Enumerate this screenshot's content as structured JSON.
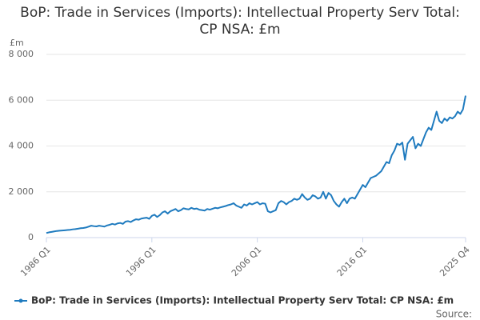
{
  "chart_data": {
    "type": "line",
    "title": "BoP: Trade in Services (Imports): Intellectual Property Serv Total: CP NSA: £m",
    "y_label": "£m",
    "source": "Source:",
    "categories": [
      "1986 Q1",
      null,
      null,
      null,
      null,
      null,
      null,
      null,
      null,
      null,
      null,
      null,
      null,
      null,
      null,
      null,
      null,
      null,
      null,
      null,
      null,
      null,
      null,
      null,
      null,
      null,
      null,
      null,
      null,
      null,
      null,
      null,
      null,
      null,
      null,
      null,
      null,
      null,
      null,
      null,
      "1996 Q1",
      null,
      null,
      null,
      null,
      null,
      null,
      null,
      null,
      null,
      null,
      null,
      null,
      null,
      null,
      null,
      null,
      null,
      null,
      null,
      null,
      null,
      null,
      null,
      null,
      null,
      null,
      null,
      null,
      null,
      null,
      null,
      null,
      null,
      null,
      null,
      null,
      null,
      null,
      null,
      "2006 Q1",
      null,
      null,
      null,
      null,
      null,
      null,
      null,
      null,
      null,
      null,
      null,
      null,
      null,
      null,
      null,
      null,
      null,
      null,
      null,
      null,
      null,
      null,
      null,
      null,
      null,
      null,
      null,
      null,
      null,
      null,
      null,
      null,
      null,
      null,
      null,
      null,
      null,
      null,
      null,
      "2016 Q1",
      null,
      null,
      null,
      null,
      null,
      null,
      null,
      null,
      null,
      null,
      null,
      null,
      null,
      null,
      null,
      null,
      null,
      null,
      null,
      null,
      null,
      null,
      null,
      null,
      null,
      null,
      null,
      null,
      null,
      null,
      null,
      null,
      null,
      null,
      null,
      null,
      null,
      null,
      "2025 Q4"
    ],
    "series": [
      {
        "name": "BoP: Trade in Services (Imports): Intellectual Property Serv Total: CP NSA: £m",
        "color": "#1f7bbf",
        "values": [
          200,
          230,
          250,
          270,
          290,
          300,
          310,
          320,
          330,
          340,
          360,
          370,
          390,
          410,
          420,
          440,
          480,
          520,
          500,
          490,
          520,
          500,
          480,
          530,
          560,
          600,
          570,
          620,
          640,
          600,
          700,
          720,
          680,
          750,
          800,
          780,
          830,
          850,
          870,
          820,
          950,
          1000,
          900,
          980,
          1100,
          1150,
          1050,
          1150,
          1200,
          1250,
          1150,
          1200,
          1280,
          1250,
          1230,
          1300,
          1250,
          1270,
          1220,
          1200,
          1180,
          1250,
          1220,
          1260,
          1300,
          1280,
          1320,
          1350,
          1380,
          1420,
          1450,
          1500,
          1400,
          1350,
          1300,
          1450,
          1400,
          1500,
          1450,
          1500,
          1550,
          1450,
          1500,
          1480,
          1150,
          1100,
          1150,
          1200,
          1500,
          1600,
          1550,
          1450,
          1550,
          1600,
          1700,
          1650,
          1700,
          1900,
          1750,
          1650,
          1700,
          1850,
          1800,
          1700,
          1750,
          2000,
          1700,
          1950,
          1850,
          1600,
          1450,
          1350,
          1550,
          1700,
          1500,
          1700,
          1750,
          1700,
          1900,
          2100,
          2300,
          2200,
          2400,
          2600,
          2650,
          2700,
          2800,
          2900,
          3100,
          3300,
          3250,
          3600,
          3800,
          4100,
          4050,
          4150,
          3400,
          4100,
          4250,
          4400,
          3900,
          4100,
          4000,
          4300,
          4600,
          4800,
          4700,
          5100,
          5500,
          5100,
          5000,
          5200,
          5100,
          5250,
          5200,
          5300,
          5500,
          5400,
          5600,
          6200
        ]
      }
    ],
    "ylim": [
      0,
      8000
    ],
    "yticks": [
      0,
      {
        "value": 2000,
        "label": "2 000"
      },
      {
        "value": 4000,
        "label": "4 000"
      },
      {
        "value": 6000,
        "label": "6 000"
      },
      {
        "value": 8000,
        "label": "8 000"
      }
    ],
    "grid": true
  }
}
